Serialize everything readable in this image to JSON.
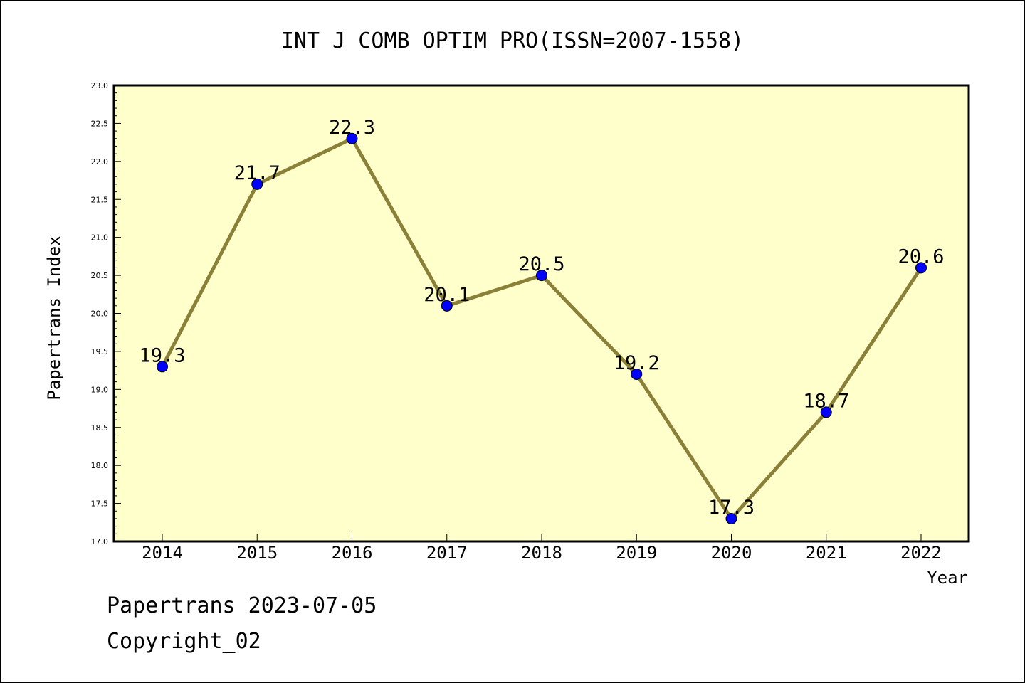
{
  "chart_data": {
    "type": "line",
    "title": "INT J COMB OPTIM PRO(ISSN=2007-1558)",
    "xlabel": "Year",
    "ylabel": "Papertrans Index",
    "categories": [
      "2014",
      "2015",
      "2016",
      "2017",
      "2018",
      "2019",
      "2020",
      "2021",
      "2022"
    ],
    "values": [
      19.3,
      21.7,
      22.3,
      20.1,
      20.5,
      19.2,
      17.3,
      18.7,
      20.6
    ],
    "data_labels": [
      "19.3",
      "21.7",
      "22.3",
      "20.1",
      "20.5",
      "19.2",
      "17.3",
      "18.7",
      "20.6"
    ],
    "ylim": [
      17.0,
      23.0
    ],
    "yticks": [
      "17.0",
      "17.5",
      "18.0",
      "18.5",
      "19.0",
      "19.5",
      "20.0",
      "20.5",
      "21.0",
      "21.5",
      "22.0",
      "22.5",
      "23.0"
    ],
    "grid": false,
    "colors": {
      "plot_background": "#ffffcc",
      "line": "#8b8038",
      "marker": "#0000ff"
    }
  },
  "footer": {
    "date_line": "Papertrans 2023-07-05",
    "copyright": "Copyright_02"
  }
}
